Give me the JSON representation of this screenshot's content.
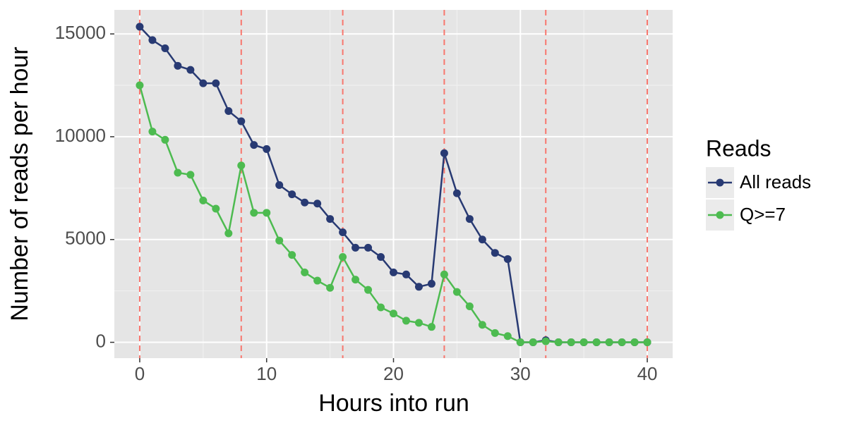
{
  "chart_data": {
    "type": "line",
    "xlabel": "Hours into run",
    "ylabel": "Number of reads per hour",
    "legend_title": "Reads",
    "legend_position": "right",
    "x": [
      0,
      1,
      2,
      3,
      4,
      5,
      6,
      7,
      8,
      9,
      10,
      11,
      12,
      13,
      14,
      15,
      16,
      17,
      18,
      19,
      20,
      21,
      22,
      23,
      24,
      25,
      26,
      27,
      28,
      29,
      30,
      31,
      32,
      33,
      34,
      35,
      36,
      37,
      38,
      39,
      40
    ],
    "series": [
      {
        "name": "All reads",
        "color": "#283a73",
        "values": [
          15350,
          14700,
          14300,
          13450,
          13250,
          12600,
          12600,
          11250,
          10750,
          9600,
          9400,
          7650,
          7200,
          6800,
          6750,
          6000,
          5350,
          4600,
          4600,
          4150,
          3400,
          3300,
          2700,
          2850,
          9200,
          7250,
          6000,
          5000,
          4350,
          4050,
          0,
          0,
          100,
          0,
          0,
          0,
          0,
          0,
          0,
          0,
          0
        ]
      },
      {
        "name": "Q>=7",
        "color": "#4dbb50",
        "values": [
          12500,
          10250,
          9850,
          8250,
          8150,
          6900,
          6500,
          5300,
          8600,
          6300,
          6300,
          4950,
          4250,
          3400,
          3000,
          2650,
          4150,
          3050,
          2550,
          1700,
          1400,
          1050,
          950,
          750,
          3300,
          2450,
          1750,
          850,
          450,
          300,
          0,
          0,
          50,
          0,
          0,
          0,
          0,
          0,
          0,
          0,
          0
        ]
      }
    ],
    "vlines": [
      0,
      8,
      16,
      24,
      32,
      40
    ],
    "vline_color": "#f8766d",
    "xlim": [
      -2,
      42
    ],
    "ylim": [
      -770,
      16170
    ],
    "xticks": [
      0,
      10,
      20,
      30,
      40
    ],
    "yticks": [
      0,
      5000,
      10000,
      15000
    ],
    "grid": true
  }
}
